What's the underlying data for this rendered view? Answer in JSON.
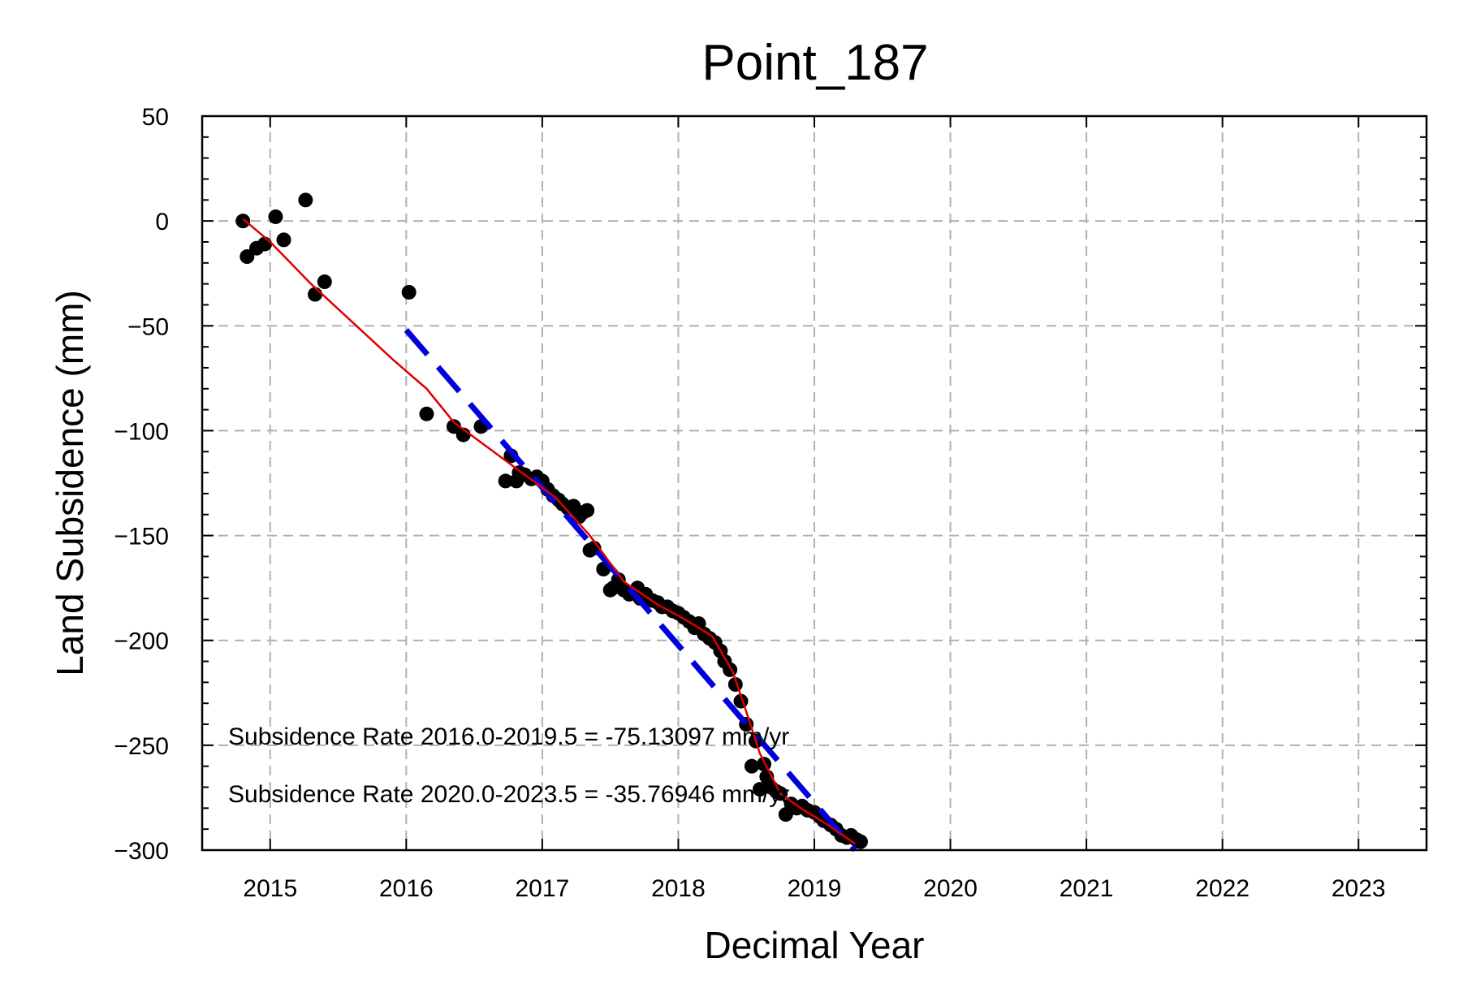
{
  "chart_data": {
    "type": "scatter",
    "title": "Point_187",
    "xlabel": "Decimal Year",
    "ylabel": "Land Subsidence (mm)",
    "xlim": [
      2014.5,
      2023.5
    ],
    "ylim": [
      -300,
      50
    ],
    "xticks": [
      2015,
      2016,
      2017,
      2018,
      2019,
      2020,
      2021,
      2022,
      2023
    ],
    "yticks": [
      50,
      0,
      -50,
      -100,
      -150,
      -200,
      -250,
      -300
    ],
    "grid": true,
    "annotations": [
      "Subsidence Rate 2016.0-2019.5 = -75.13097 mm/yr",
      "Subsidence Rate 2020.0-2023.5 = -35.76946 mm/yr"
    ],
    "series": [
      {
        "kind": "points",
        "color": "#000000",
        "x": [
          2014.8,
          2014.83,
          2014.9,
          2014.96,
          2015.04,
          2015.1,
          2015.26,
          2015.33,
          2015.4,
          2016.02,
          2016.15,
          2016.35,
          2016.42,
          2016.55,
          2016.73,
          2016.77,
          2016.81,
          2016.83,
          2016.87,
          2016.92,
          2016.96,
          2017.0,
          2017.04,
          2017.08,
          2017.12,
          2017.15,
          2017.19,
          2017.23,
          2017.27,
          2017.3,
          2017.33,
          2017.35,
          2017.38,
          2017.45,
          2017.5,
          2017.52,
          2017.56,
          2017.6,
          2017.64,
          2017.7,
          2017.72,
          2017.76,
          2017.81,
          2017.85,
          2017.88,
          2017.92,
          2017.96,
          2018.0,
          2018.04,
          2018.08,
          2018.12,
          2018.15,
          2018.19,
          2018.23,
          2018.27,
          2018.31,
          2018.34,
          2018.38,
          2018.42,
          2018.46,
          2018.5,
          2018.54,
          2018.57,
          2018.6,
          2018.63,
          2018.65,
          2018.68,
          2018.72,
          2018.75,
          2018.79,
          2018.83,
          2018.87,
          2018.91,
          2018.95,
          2019.0,
          2019.04,
          2019.07,
          2019.12,
          2019.16,
          2019.2,
          2019.24,
          2019.27,
          2019.31,
          2019.34
        ],
        "y": [
          0,
          -17,
          -13,
          -11,
          2,
          -9,
          10,
          -35,
          -29,
          -34,
          -92,
          -98,
          -102,
          -98,
          -124,
          -112,
          -124,
          -120,
          -121,
          -123,
          -122,
          -124,
          -128,
          -131,
          -133,
          -135,
          -137,
          -136,
          -141,
          -139,
          -138,
          -157,
          -156,
          -166,
          -176,
          -175,
          -171,
          -176,
          -178,
          -175,
          -180,
          -178,
          -181,
          -182,
          -184,
          -184,
          -186,
          -187,
          -189,
          -191,
          -194,
          -192,
          -197,
          -199,
          -201,
          -205,
          -210,
          -214,
          -221,
          -229,
          -240,
          -260,
          -248,
          -271,
          -259,
          -265,
          -270,
          -272,
          -273,
          -283,
          -278,
          -280,
          -279,
          -281,
          -282,
          -284,
          -286,
          -288,
          -290,
          -293,
          -294,
          -293,
          -295,
          -296
        ]
      },
      {
        "kind": "smooth-line",
        "color": "#dd0000",
        "x": [
          2014.8,
          2015.0,
          2015.3,
          2015.6,
          2015.9,
          2016.15,
          2016.35,
          2016.6,
          2016.85,
          2017.1,
          2017.35,
          2017.6,
          2017.85,
          2018.05,
          2018.25,
          2018.4,
          2018.5,
          2018.6,
          2018.75,
          2018.9,
          2019.1,
          2019.3
        ],
        "y": [
          1,
          -10,
          -30,
          -48,
          -66,
          -80,
          -96,
          -108,
          -120,
          -132,
          -150,
          -172,
          -183,
          -190,
          -198,
          -215,
          -234,
          -254,
          -273,
          -280,
          -288,
          -297
        ]
      },
      {
        "kind": "dashed-trend",
        "color": "#0000dd",
        "x": [
          2016.0,
          2019.3
        ],
        "y": [
          -52,
          -300
        ]
      }
    ]
  }
}
